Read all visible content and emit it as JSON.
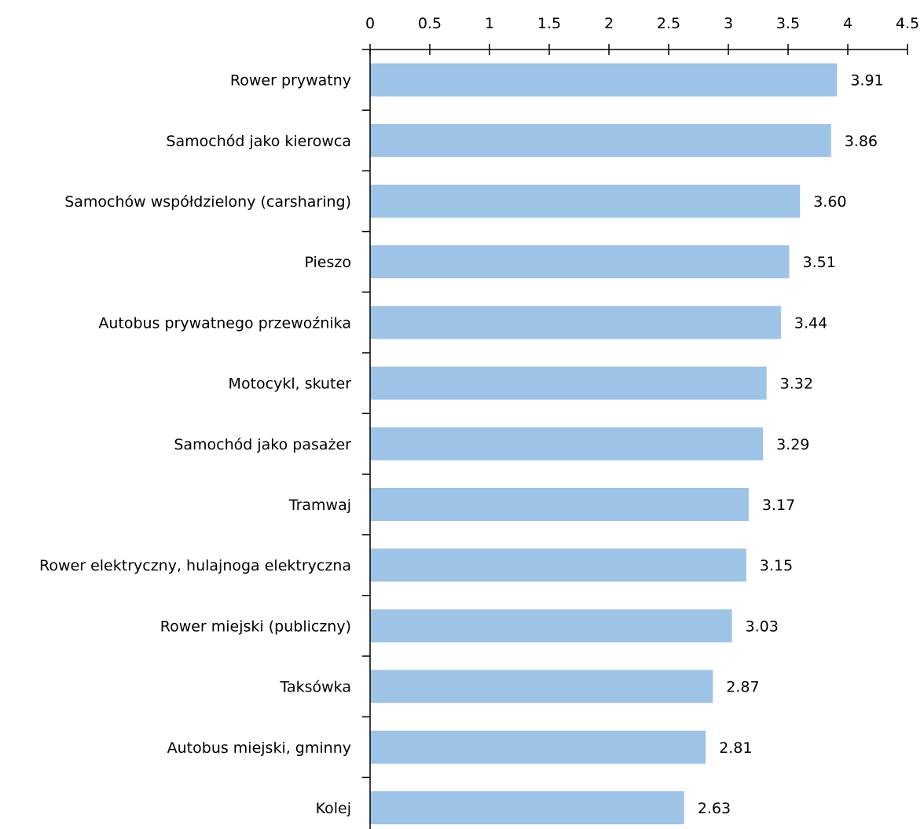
{
  "chart_data": {
    "type": "bar",
    "orientation": "horizontal",
    "categories": [
      "Rower prywatny",
      "Samochód jako kierowca",
      "Samochów współdzielony (carsharing)",
      "Pieszo",
      "Autobus prywatnego przewoźnika",
      "Motocykl, skuter",
      "Samochód jako pasażer",
      "Tramwaj",
      "Rower elektryczny, hulajnoga elektryczna",
      "Rower miejski (publiczny)",
      "Taksówka",
      "Autobus miejski, gminny",
      "Kolej"
    ],
    "values": [
      3.91,
      3.86,
      3.6,
      3.51,
      3.44,
      3.32,
      3.29,
      3.17,
      3.15,
      3.03,
      2.87,
      2.81,
      2.63
    ],
    "value_labels": [
      "3.91",
      "3.86",
      "3.60",
      "3.51",
      "3.44",
      "3.32",
      "3.29",
      "3.17",
      "3.15",
      "3.03",
      "2.87",
      "2.81",
      "2.63"
    ],
    "xlim": [
      0,
      4.5
    ],
    "x_ticks": [
      0,
      0.5,
      1,
      1.5,
      2,
      2.5,
      3,
      3.5,
      4,
      4.5
    ],
    "x_tick_labels": [
      "0",
      "0.5",
      "1",
      "1.5",
      "2",
      "2.5",
      "3",
      "3.5",
      "4",
      "4.5"
    ],
    "x_axis_position": "top",
    "grid": false,
    "legend": "none",
    "bar_color": "#9dc3e6",
    "axis_color": "#000000",
    "title": "",
    "xlabel": "",
    "ylabel": ""
  }
}
